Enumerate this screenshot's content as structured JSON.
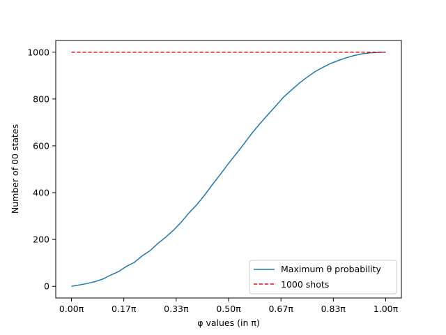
{
  "chart_data": {
    "type": "line",
    "title": "",
    "xlabel": "φ values (in π)",
    "ylabel": "Number of 00 states",
    "xlim": [
      -0.05,
      1.05
    ],
    "ylim": [
      -50,
      1050
    ],
    "x_ticks": [
      0,
      0.1667,
      0.3333,
      0.5,
      0.6667,
      0.8333,
      1.0
    ],
    "x_tick_labels": [
      "0.00π",
      "0.17π",
      "0.33π",
      "0.50π",
      "0.67π",
      "0.83π",
      "1.00π"
    ],
    "y_ticks": [
      0,
      200,
      400,
      600,
      800,
      1000
    ],
    "y_tick_labels": [
      "0",
      "200",
      "400",
      "600",
      "800",
      "1000"
    ],
    "grid": false,
    "legend_position": "lower-right",
    "series": [
      {
        "name": "Maximum θ probability",
        "style": "solid",
        "color": "#1f77b4",
        "x": [
          0,
          0.025,
          0.05,
          0.075,
          0.1,
          0.125,
          0.15,
          0.175,
          0.2,
          0.225,
          0.25,
          0.275,
          0.3,
          0.325,
          0.35,
          0.375,
          0.4,
          0.425,
          0.45,
          0.475,
          0.5,
          0.525,
          0.55,
          0.575,
          0.6,
          0.625,
          0.65,
          0.675,
          0.7,
          0.725,
          0.75,
          0.775,
          0.8,
          0.825,
          0.85,
          0.875,
          0.9,
          0.925,
          0.95,
          0.975,
          1.0
        ],
        "values": [
          0,
          6,
          12,
          20,
          31,
          48,
          63,
          85,
          102,
          130,
          152,
          183,
          210,
          240,
          275,
          315,
          350,
          392,
          437,
          480,
          525,
          567,
          610,
          655,
          695,
          733,
          770,
          808,
          838,
          868,
          893,
          917,
          935,
          952,
          965,
          976,
          986,
          993,
          997,
          999,
          1000
        ]
      },
      {
        "name": "1000 shots",
        "style": "dashed",
        "color": "#ff0000",
        "x": [
          0,
          1.0
        ],
        "values": [
          1000,
          1000
        ]
      }
    ]
  }
}
